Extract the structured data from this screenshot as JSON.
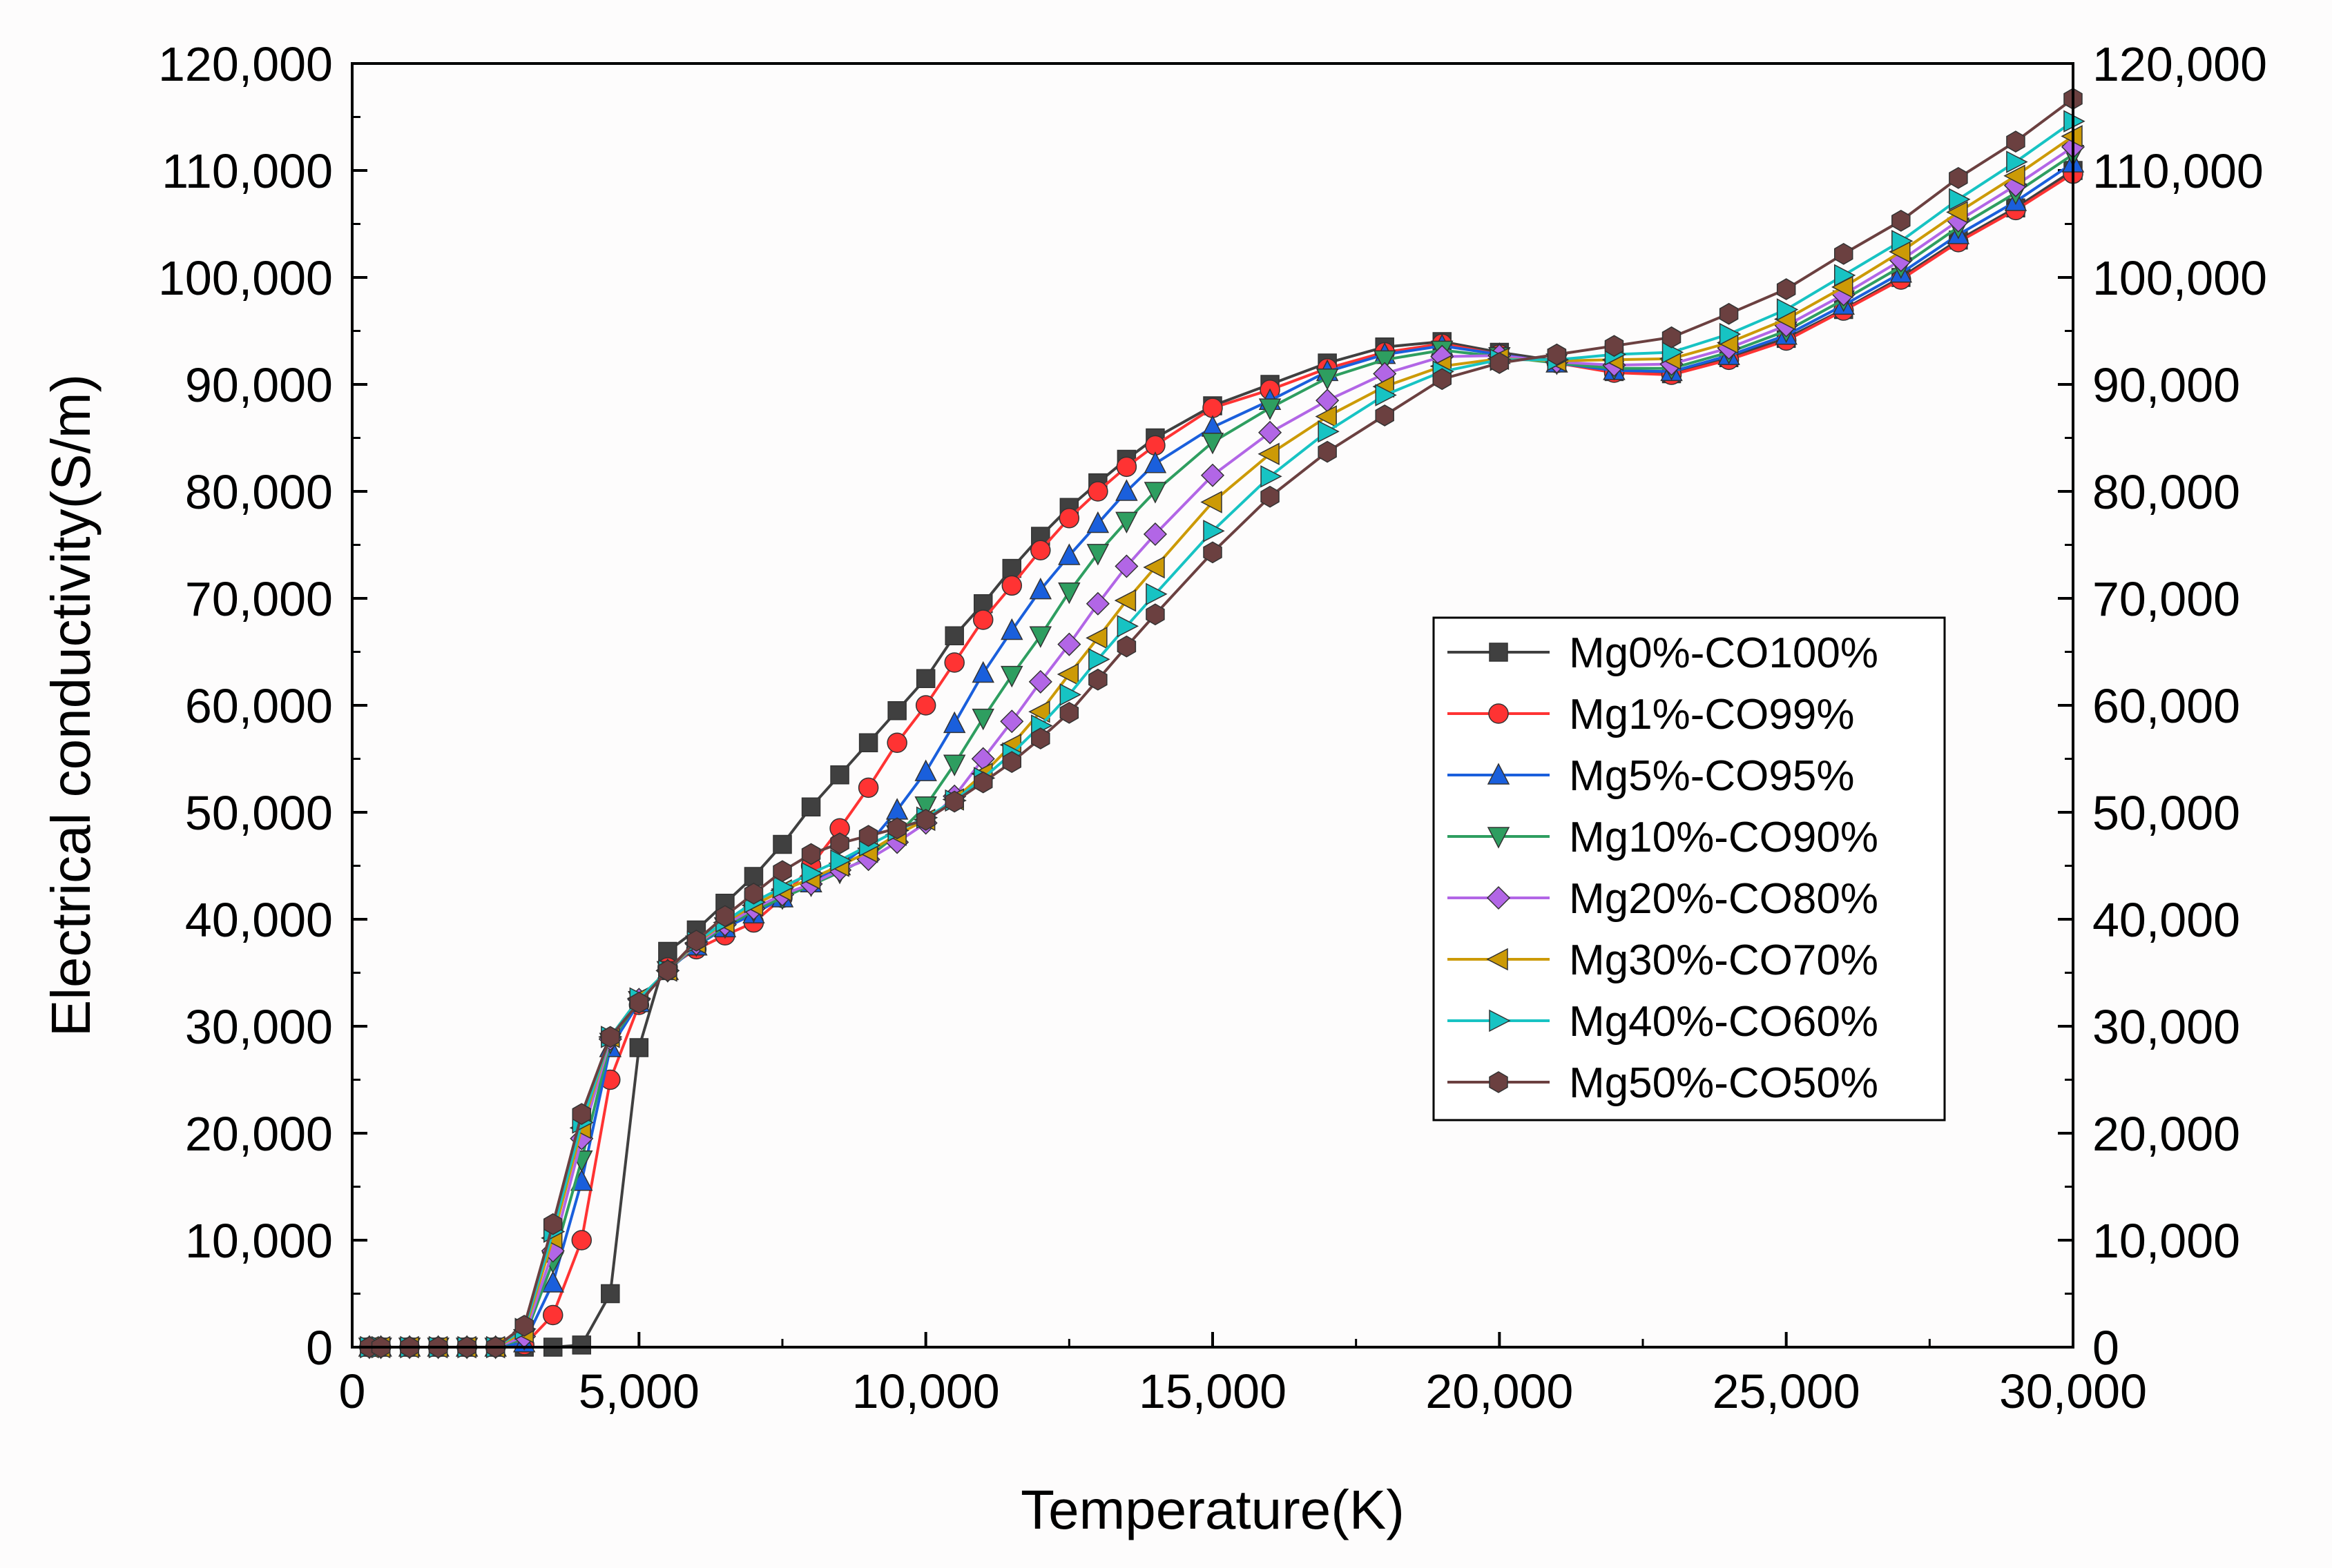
{
  "chart_data": {
    "type": "line",
    "title": "",
    "xlabel": "Temperature(K)",
    "ylabel": "Electrical conductivity(S/m)",
    "xlim": [
      0,
      30000
    ],
    "ylim": [
      0,
      120000
    ],
    "x_ticks": [
      0,
      5000,
      10000,
      15000,
      20000,
      25000,
      30000
    ],
    "x_tick_labels": [
      "0",
      "5,000",
      "10,000",
      "15,000",
      "20,000",
      "25,000",
      "30,000"
    ],
    "y_ticks": [
      0,
      10000,
      20000,
      30000,
      40000,
      50000,
      60000,
      70000,
      80000,
      90000,
      100000,
      110000,
      120000
    ],
    "y_tick_labels": [
      "0",
      "10,000",
      "20,000",
      "30,000",
      "40,000",
      "50,000",
      "60,000",
      "70,000",
      "80,000",
      "90,000",
      "100,000",
      "110,000",
      "120,000"
    ],
    "right_axis_mirror": true,
    "legend_position": "center-right",
    "series": [
      {
        "name": "Mg0%-CO100%",
        "color": "#404040",
        "marker": "square",
        "x": [
          300,
          500,
          1000,
          1500,
          2000,
          2500,
          3000,
          3500,
          4000,
          4500,
          5000,
          5500,
          6000,
          6500,
          7000,
          7500,
          8000,
          8500,
          9000,
          9500,
          10000,
          10500,
          11000,
          11500,
          12000,
          12500,
          13000,
          13500,
          14000,
          15000,
          16000,
          17000,
          18000,
          19000,
          20000,
          21000,
          22000,
          23000,
          24000,
          25000,
          26000,
          27000,
          28000,
          29000,
          30000
        ],
        "values": [
          0,
          0,
          0,
          0,
          0,
          0,
          0,
          0,
          200,
          5000,
          28000,
          37000,
          39000,
          41500,
          44000,
          47000,
          50500,
          53500,
          56500,
          59500,
          62500,
          66500,
          69500,
          72800,
          75800,
          78500,
          80800,
          83000,
          85000,
          88000,
          90000,
          92000,
          93500,
          94000,
          93000,
          92200,
          91200,
          91000,
          92500,
          94300,
          97000,
          100000,
          103500,
          106500,
          110000
        ]
      },
      {
        "name": "Mg1%-CO99%",
        "color": "#ff3333",
        "marker": "circle",
        "x": [
          300,
          500,
          1000,
          1500,
          2000,
          2500,
          3000,
          3500,
          4000,
          4500,
          5000,
          5500,
          6000,
          6500,
          7000,
          7500,
          8000,
          8500,
          9000,
          9500,
          10000,
          10500,
          11000,
          11500,
          12000,
          12500,
          13000,
          13500,
          14000,
          15000,
          16000,
          17000,
          18000,
          19000,
          20000,
          21000,
          22000,
          23000,
          24000,
          25000,
          26000,
          27000,
          28000,
          29000,
          30000
        ],
        "values": [
          0,
          0,
          0,
          0,
          0,
          0,
          200,
          3000,
          10000,
          25000,
          32000,
          35500,
          37200,
          38500,
          39700,
          42000,
          45000,
          48500,
          52300,
          56500,
          60000,
          64000,
          68000,
          71200,
          74500,
          77500,
          80000,
          82300,
          84300,
          87800,
          89500,
          91500,
          93000,
          93800,
          92800,
          92000,
          91100,
          90900,
          92300,
          94100,
          96900,
          99800,
          103300,
          106300,
          109700
        ]
      },
      {
        "name": "Mg5%-CO95%",
        "color": "#1a5fdc",
        "marker": "triangle-up",
        "x": [
          300,
          500,
          1000,
          1500,
          2000,
          2500,
          3000,
          3500,
          4000,
          4500,
          5000,
          5500,
          6000,
          6500,
          7000,
          7500,
          8000,
          8500,
          9000,
          9500,
          10000,
          10500,
          11000,
          11500,
          12000,
          12500,
          13000,
          13500,
          14000,
          15000,
          16000,
          17000,
          18000,
          19000,
          20000,
          21000,
          22000,
          23000,
          24000,
          25000,
          26000,
          27000,
          28000,
          29000,
          30000
        ],
        "values": [
          0,
          0,
          0,
          0,
          0,
          0,
          400,
          6000,
          15500,
          28000,
          32200,
          35200,
          37500,
          39200,
          40500,
          42000,
          43400,
          45000,
          47000,
          50200,
          53800,
          58300,
          63000,
          67000,
          70800,
          74000,
          77000,
          80000,
          82600,
          86000,
          88500,
          91200,
          92800,
          93600,
          92800,
          92000,
          91300,
          91200,
          92700,
          94600,
          97400,
          100400,
          104000,
          107100,
          110700
        ]
      },
      {
        "name": "Mg10%-CO90%",
        "color": "#2e9e60",
        "marker": "triangle-down",
        "x": [
          300,
          500,
          1000,
          1500,
          2000,
          2500,
          3000,
          3500,
          4000,
          4500,
          5000,
          5500,
          6000,
          6500,
          7000,
          7500,
          8000,
          8500,
          9000,
          9500,
          10000,
          10500,
          11000,
          11500,
          12000,
          12500,
          13000,
          13500,
          14000,
          15000,
          16000,
          17000,
          18000,
          19000,
          20000,
          21000,
          22000,
          23000,
          24000,
          25000,
          26000,
          27000,
          28000,
          29000,
          30000
        ],
        "values": [
          0,
          0,
          0,
          0,
          0,
          0,
          800,
          8000,
          17500,
          28500,
          32400,
          35200,
          37600,
          39300,
          40800,
          42000,
          43200,
          44400,
          45800,
          47900,
          50600,
          54500,
          58800,
          62800,
          66500,
          70600,
          74200,
          77200,
          80000,
          84600,
          87800,
          90600,
          92300,
          93200,
          92600,
          92000,
          91500,
          91500,
          93000,
          95000,
          97900,
          101000,
          104700,
          107900,
          111500
        ]
      },
      {
        "name": "Mg20%-CO80%",
        "color": "#b266e6",
        "marker": "diamond",
        "x": [
          300,
          500,
          1000,
          1500,
          2000,
          2500,
          3000,
          3500,
          4000,
          4500,
          5000,
          5500,
          6000,
          6500,
          7000,
          7500,
          8000,
          8500,
          9000,
          9500,
          10000,
          10500,
          11000,
          11500,
          12000,
          12500,
          13000,
          13500,
          14000,
          15000,
          16000,
          17000,
          18000,
          19000,
          20000,
          21000,
          22000,
          23000,
          24000,
          25000,
          26000,
          27000,
          28000,
          29000,
          30000
        ],
        "values": [
          0,
          0,
          0,
          0,
          0,
          0,
          1000,
          9000,
          19500,
          28800,
          32500,
          35200,
          37700,
          39500,
          41000,
          42300,
          43300,
          44600,
          45600,
          47200,
          49000,
          51500,
          55000,
          58500,
          62200,
          65700,
          69500,
          73000,
          76000,
          81500,
          85500,
          88500,
          91000,
          92600,
          92700,
          92100,
          91800,
          91900,
          93400,
          95500,
          98400,
          101600,
          105300,
          108600,
          112200
        ]
      },
      {
        "name": "Mg30%-CO70%",
        "color": "#cc9a06",
        "marker": "triangle-left",
        "x": [
          300,
          500,
          1000,
          1500,
          2000,
          2500,
          3000,
          3500,
          4000,
          4500,
          5000,
          5500,
          6000,
          6500,
          7000,
          7500,
          8000,
          8500,
          9000,
          9500,
          10000,
          10500,
          11000,
          11500,
          12000,
          12500,
          13000,
          13500,
          14000,
          15000,
          16000,
          17000,
          18000,
          19000,
          20000,
          21000,
          22000,
          23000,
          24000,
          25000,
          26000,
          27000,
          28000,
          29000,
          30000
        ],
        "values": [
          0,
          0,
          0,
          0,
          0,
          0,
          1400,
          10200,
          20500,
          29000,
          32600,
          35200,
          37800,
          39700,
          41300,
          42700,
          43800,
          45000,
          46300,
          47900,
          49300,
          51200,
          53600,
          56300,
          59400,
          62900,
          66300,
          69800,
          72900,
          79000,
          83500,
          87000,
          89800,
          91700,
          92400,
          92200,
          92300,
          92400,
          93900,
          96100,
          99100,
          102400,
          106100,
          109500,
          113200
        ]
      },
      {
        "name": "Mg40%-CO60%",
        "color": "#17c3c3",
        "marker": "triangle-right",
        "x": [
          300,
          500,
          1000,
          1500,
          2000,
          2500,
          3000,
          3500,
          4000,
          4500,
          5000,
          5500,
          6000,
          6500,
          7000,
          7500,
          8000,
          8500,
          9000,
          9500,
          10000,
          10500,
          11000,
          11500,
          12000,
          12500,
          13000,
          13500,
          14000,
          15000,
          16000,
          17000,
          18000,
          19000,
          20000,
          21000,
          22000,
          23000,
          24000,
          25000,
          26000,
          27000,
          28000,
          29000,
          30000
        ],
        "values": [
          0,
          0,
          0,
          0,
          0,
          0,
          1700,
          10800,
          21000,
          29000,
          32600,
          35200,
          37900,
          39800,
          41600,
          43000,
          44300,
          45500,
          46900,
          48300,
          49500,
          51100,
          53200,
          55500,
          58100,
          61000,
          64300,
          67400,
          70400,
          76300,
          81400,
          85600,
          89000,
          91200,
          92300,
          92300,
          92800,
          93000,
          94700,
          97000,
          100200,
          103400,
          107300,
          110800,
          114600
        ]
      },
      {
        "name": "Mg50%-CO50%",
        "color": "#6b4040",
        "marker": "hexagon",
        "x": [
          300,
          500,
          1000,
          1500,
          2000,
          2500,
          3000,
          3500,
          4000,
          4500,
          5000,
          5500,
          6000,
          6500,
          7000,
          7500,
          8000,
          8500,
          9000,
          9500,
          10000,
          10500,
          11000,
          11500,
          12000,
          12500,
          13000,
          13500,
          14000,
          15000,
          16000,
          17000,
          18000,
          19000,
          20000,
          21000,
          22000,
          23000,
          24000,
          25000,
          26000,
          27000,
          28000,
          29000,
          30000
        ],
        "values": [
          0,
          0,
          0,
          0,
          0,
          0,
          2000,
          11500,
          21800,
          29000,
          32200,
          35200,
          38000,
          40300,
          42400,
          44500,
          46100,
          47100,
          47800,
          48500,
          49300,
          51000,
          52800,
          54700,
          56900,
          59300,
          62400,
          65500,
          68500,
          74300,
          79500,
          83700,
          87100,
          90500,
          92000,
          92800,
          93600,
          94400,
          96600,
          98900,
          102200,
          105300,
          109300,
          112700,
          116700
        ]
      }
    ]
  }
}
